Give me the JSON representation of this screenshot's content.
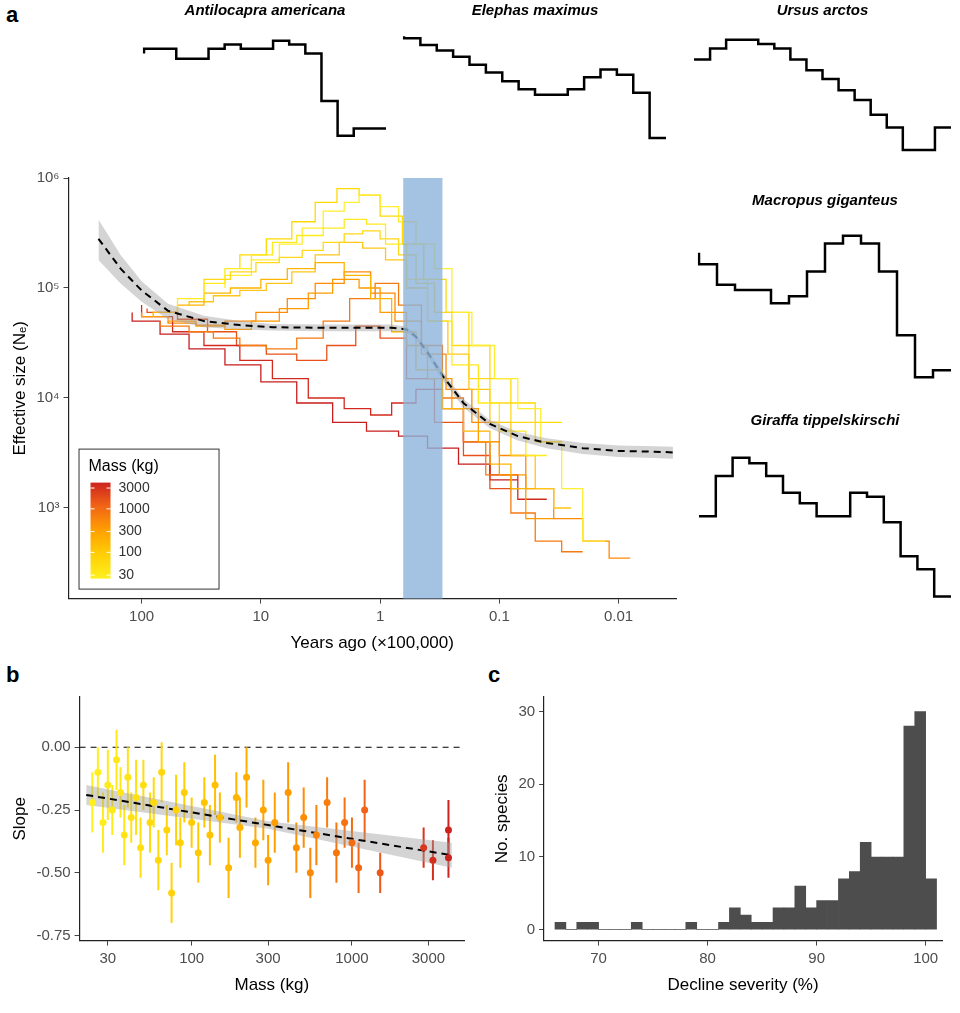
{
  "chart_data": [
    {
      "panel": "a",
      "type": "line",
      "x_label": "Years ago (×100,000)",
      "y_label": "Effective size (Nₑ)",
      "log": true,
      "grid": false,
      "xlim": [
        410,
        0.0033
      ],
      "xticks": [
        100,
        10,
        1,
        0.1,
        0.01
      ],
      "ylim": [
        150,
        1000000
      ],
      "yticks": [
        {
          "value": 1000,
          "label": "10³"
        },
        {
          "value": 10000,
          "label": "10⁴"
        },
        {
          "value": 100000,
          "label": "10⁵"
        },
        {
          "value": 1000000,
          "label": "10⁶"
        }
      ],
      "series": [
        {
          "color": "#FFEA1F",
          "line_style": "steps",
          "x": [
            50,
            30,
            20,
            12,
            8,
            5,
            3,
            2,
            1.3,
            0.9,
            0.6,
            0.4,
            0.25,
            0.15,
            0.1,
            0.06,
            0.04
          ],
          "values": [
            60000,
            80000,
            110000,
            150000,
            200000,
            260000,
            300000,
            350000,
            420000,
            380000,
            250000,
            120000,
            50000,
            20000,
            9000,
            5000,
            3000
          ]
        },
        {
          "color": "#FFD81A",
          "line_style": "steps",
          "x": [
            30,
            18,
            11,
            7,
            4.5,
            3,
            2,
            1.4,
            1,
            0.7,
            0.5,
            0.35,
            0.25,
            0.18,
            0.12,
            0.08,
            0.05,
            0.03
          ],
          "values": [
            90000,
            120000,
            140000,
            170000,
            190000,
            220000,
            260000,
            310000,
            330000,
            280000,
            200000,
            110000,
            60000,
            30000,
            15000,
            9000,
            6000,
            4000
          ]
        },
        {
          "color": "#FFB400",
          "line_style": "steps",
          "x": [
            80,
            50,
            30,
            18,
            10,
            6,
            3.5,
            2,
            1.2,
            0.8,
            0.5,
            0.3,
            0.2,
            0.12,
            0.08,
            0.05
          ],
          "values": [
            55000,
            60000,
            70000,
            90000,
            100000,
            120000,
            150000,
            170000,
            130000,
            80000,
            40000,
            18000,
            8000,
            5000,
            2500,
            1500
          ]
        },
        {
          "color": "#FF9A00",
          "line_style": "steps",
          "x": [
            100,
            60,
            35,
            20,
            12,
            7,
            4,
            2.5,
            1.5,
            1,
            0.6,
            0.4,
            0.25,
            0.15,
            0.1,
            0.06,
            0.035
          ],
          "values": [
            60000,
            55000,
            50000,
            45000,
            42000,
            50000,
            65000,
            90000,
            120000,
            100000,
            60000,
            30000,
            15000,
            8000,
            4000,
            2000,
            800
          ]
        },
        {
          "color": "#F57A10",
          "line_style": "steps",
          "x": [
            70,
            40,
            25,
            15,
            9,
            5,
            3,
            1.8,
            1.1,
            0.7,
            0.45,
            0.3,
            0.2,
            0.13,
            0.08,
            0.05,
            0.03,
            0.02
          ],
          "values": [
            50000,
            45000,
            40000,
            35000,
            30000,
            28000,
            35000,
            50000,
            80000,
            110000,
            70000,
            30000,
            10000,
            4000,
            2000,
            900,
            500,
            400
          ]
        },
        {
          "color": "#D22A1E",
          "line_style": "steps",
          "x": [
            100,
            55,
            30,
            15,
            8,
            4,
            2,
            1.2,
            0.8,
            0.5,
            0.3,
            0.2,
            0.12,
            0.07,
            0.04
          ],
          "values": [
            70000,
            55000,
            40000,
            30000,
            22000,
            15000,
            10000,
            8000,
            7000,
            9000,
            12000,
            8000,
            4000,
            2000,
            1200
          ]
        },
        {
          "color": "#E8521A",
          "line_style": "steps",
          "x": [
            90,
            50,
            28,
            16,
            9,
            5,
            2.8,
            1.6,
            1,
            0.6,
            0.35,
            0.2,
            0.12,
            0.07
          ],
          "values": [
            65000,
            60000,
            52000,
            40000,
            30000,
            25000,
            22000,
            30000,
            45000,
            35000,
            15000,
            6000,
            3000,
            1500
          ]
        },
        {
          "color": "#FFEE33",
          "line_style": "steps",
          "x": [
            20,
            12,
            7,
            4.5,
            3,
            2,
            1.5,
            1,
            0.7,
            0.5,
            0.35,
            0.25,
            0.17,
            0.11,
            0.07,
            0.045,
            0.03,
            0.02,
            0.013
          ],
          "values": [
            100000,
            130000,
            180000,
            250000,
            350000,
            500000,
            600000,
            700000,
            550000,
            400000,
            250000,
            150000,
            60000,
            30000,
            15000,
            8000,
            4000,
            1500,
            500
          ]
        },
        {
          "color": "#FFC61A",
          "line_style": "steps",
          "x": [
            40,
            25,
            15,
            9,
            5.5,
            3.5,
            2.2,
            1.4,
            0.9,
            0.6,
            0.4,
            0.27,
            0.18,
            0.12,
            0.08,
            0.05,
            0.035,
            0.025
          ],
          "values": [
            70000,
            75000,
            85000,
            95000,
            110000,
            140000,
            200000,
            260000,
            230000,
            180000,
            100000,
            50000,
            25000,
            12000,
            6000,
            3000,
            1500,
            1000
          ]
        },
        {
          "color": "#FF8A05",
          "line_style": "steps",
          "x": [
            60,
            35,
            20,
            11,
            6,
            3.5,
            2,
            1.2,
            0.75,
            0.45,
            0.28,
            0.17,
            0.1,
            0.06,
            0.035,
            0.02,
            0.012,
            0.008
          ],
          "values": [
            50000,
            48000,
            46000,
            50000,
            60000,
            80000,
            110000,
            140000,
            90000,
            50000,
            25000,
            12000,
            6000,
            3000,
            1500,
            800,
            500,
            350
          ]
        },
        {
          "color": "#C81E1E",
          "line_style": "steps",
          "x": [
            120,
            70,
            40,
            20,
            10,
            5,
            2.5,
            1.3,
            0.7,
            0.4,
            0.22,
            0.12,
            0.07
          ],
          "values": [
            60000,
            50000,
            38000,
            28000,
            20000,
            14000,
            9000,
            6000,
            5000,
            4500,
            3500,
            2500,
            1800
          ]
        },
        {
          "color": "#FFDA00",
          "line_style": "steps",
          "x": [
            15,
            9,
            5.5,
            3.5,
            2.3,
            1.5,
            1,
            0.65,
            0.43,
            0.28,
            0.18,
            0.12,
            0.08,
            0.05,
            0.03
          ],
          "values": [
            150000,
            200000,
            280000,
            400000,
            600000,
            800000,
            700000,
            450000,
            250000,
            120000,
            60000,
            30000,
            15000,
            9000,
            6000
          ]
        }
      ],
      "fit": {
        "color": "#000000",
        "line_style": "dashed",
        "x": [
          230,
          150,
          100,
          60,
          30,
          15,
          8,
          3,
          1.5,
          0.8,
          0.6,
          0.5,
          0.4,
          0.3,
          0.2,
          0.12,
          0.07,
          0.04,
          0.02,
          0.01,
          0.005,
          0.0035
        ],
        "values": [
          280000,
          150000,
          95000,
          62000,
          50000,
          46000,
          44000,
          43500,
          43500,
          43500,
          42000,
          36000,
          26000,
          16000,
          9000,
          5800,
          4500,
          3900,
          3500,
          3300,
          3250,
          3200
        ],
        "lower": [
          180000,
          110000,
          75000,
          52000,
          44000,
          42000,
          41000,
          40500,
          40500,
          40500,
          39500,
          34000,
          24000,
          14500,
          8200,
          5300,
          4100,
          3500,
          3100,
          2900,
          2850,
          2800
        ],
        "upper": [
          420000,
          200000,
          115000,
          72000,
          56000,
          50000,
          47000,
          46500,
          46500,
          46500,
          44500,
          38000,
          28000,
          17500,
          9800,
          6300,
          4900,
          4300,
          3900,
          3700,
          3650,
          3600
        ]
      },
      "highlight": {
        "x": [
          0.64,
          0.3
        ],
        "color": "#8DB3D9"
      },
      "color_bar": {
        "title": "Mass (kg)",
        "range": [
          25,
          4000
        ],
        "ticks": [
          30,
          100,
          300,
          1000,
          3000
        ]
      }
    },
    {
      "type": "line",
      "title": "Antilocapra americana",
      "log": "y",
      "tick_labels": false,
      "color": "#000000",
      "line_style": "steps",
      "ylim": [
        3000,
        80000
      ],
      "values": [
        40000,
        45000,
        45000,
        35000,
        35000,
        45000,
        50000,
        45000,
        45000,
        55000,
        50000,
        40000,
        12000,
        5000,
        6000,
        6000
      ]
    },
    {
      "type": "line",
      "title": "Elephas maximus",
      "log": "y",
      "tick_labels": false,
      "color": "#000000",
      "line_style": "steps",
      "ylim": [
        3000,
        120000
      ],
      "values": [
        90000,
        85000,
        70000,
        60000,
        50000,
        40000,
        32000,
        25000,
        20000,
        17000,
        17000,
        20000,
        28000,
        35000,
        30000,
        18000,
        5000
      ]
    },
    {
      "type": "line",
      "title": "Ursus arctos",
      "log": "y",
      "tick_labels": false,
      "color": "#000000",
      "line_style": "steps",
      "ylim": [
        5000,
        150000
      ],
      "values": [
        70000,
        70000,
        90000,
        110000,
        110000,
        100000,
        90000,
        70000,
        55000,
        45000,
        35000,
        28000,
        20000,
        15000,
        9000,
        9000,
        15000
      ]
    },
    {
      "type": "line",
      "title": "Macropus giganteus",
      "log": "y",
      "tick_labels": false,
      "color": "#000000",
      "line_style": "steps",
      "ylim": [
        4000,
        200000
      ],
      "values": [
        90000,
        70000,
        45000,
        40000,
        40000,
        30000,
        35000,
        60000,
        110000,
        130000,
        110000,
        60000,
        15000,
        6000,
        7000
      ]
    },
    {
      "type": "line",
      "title": "Giraffa tippelskirschi",
      "log": "y",
      "tick_labels": false,
      "color": "#000000",
      "line_style": "steps",
      "ylim": [
        3000,
        80000
      ],
      "values": [
        20000,
        20000,
        40000,
        55000,
        50000,
        40000,
        30000,
        25000,
        20000,
        20000,
        30000,
        28000,
        18000,
        10000,
        8000,
        5000
      ]
    },
    {
      "panel": "b",
      "type": "scatter",
      "x_label": "Mass (kg)",
      "y_label": "Slope",
      "log": "x",
      "grid": false,
      "xlim": [
        20,
        5000
      ],
      "xticks": [
        30,
        100,
        300,
        1000,
        3000
      ],
      "ylim": [
        -0.77,
        0.2
      ],
      "yticks": [
        -0.75,
        {
          "value": -0.5,
          "label": "-0.50"
        },
        -0.25,
        {
          "value": 0,
          "label": "0.00"
        }
      ],
      "reference_line": 0,
      "x": [
        24,
        26,
        28,
        30,
        32,
        34,
        36,
        38,
        40,
        42,
        45,
        48,
        50,
        55,
        58,
        62,
        65,
        70,
        75,
        80,
        85,
        90,
        100,
        110,
        120,
        130,
        140,
        150,
        170,
        190,
        200,
        220,
        250,
        280,
        300,
        330,
        400,
        450,
        500,
        550,
        600,
        700,
        800,
        900,
        1000,
        1100,
        1200,
        1500,
        2800,
        3200,
        4000,
        4000
      ],
      "values": [
        -0.22,
        -0.1,
        -0.3,
        -0.15,
        -0.25,
        -0.05,
        -0.18,
        -0.35,
        -0.12,
        -0.28,
        -0.2,
        -0.4,
        -0.15,
        -0.3,
        -0.22,
        -0.45,
        -0.1,
        -0.33,
        -0.58,
        -0.25,
        -0.38,
        -0.18,
        -0.3,
        -0.42,
        -0.22,
        -0.35,
        -0.15,
        -0.28,
        -0.48,
        -0.2,
        -0.32,
        -0.12,
        -0.38,
        -0.25,
        -0.45,
        -0.3,
        -0.18,
        -0.4,
        -0.28,
        -0.5,
        -0.35,
        -0.22,
        -0.42,
        -0.3,
        -0.38,
        -0.48,
        -0.25,
        -0.5,
        -0.4,
        -0.45,
        -0.33,
        -0.44
      ],
      "errors": [
        0.12,
        0.1,
        0.12,
        0.14,
        0.1,
        0.12,
        0.1,
        0.12,
        0.12,
        0.1,
        0.15,
        0.12,
        0.1,
        0.12,
        0.1,
        0.12,
        0.12,
        0.1,
        0.12,
        0.14,
        0.1,
        0.12,
        0.1,
        0.12,
        0.1,
        0.12,
        0.12,
        0.1,
        0.12,
        0.1,
        0.12,
        0.12,
        0.1,
        0.12,
        0.1,
        0.12,
        0.12,
        0.1,
        0.12,
        0.1,
        0.12,
        0.1,
        0.12,
        0.1,
        0.1,
        0.1,
        0.12,
        0.08,
        0.08,
        0.08,
        0.12,
        0.08
      ],
      "fit": {
        "color": "#000000",
        "line_style": "dashed",
        "x": [
          22,
          300,
          4200
        ],
        "values": [
          -0.19,
          -0.31,
          -0.43
        ],
        "lower": [
          -0.23,
          -0.325,
          -0.48
        ],
        "upper": [
          -0.15,
          -0.295,
          -0.38
        ]
      }
    },
    {
      "panel": "c",
      "type": "histogram",
      "x_label": "Decline severity (%)",
      "y_label": "No. species",
      "grid": false,
      "color": "#4D4D4D",
      "xlim": [
        65,
        101.5
      ],
      "xticks": [
        70,
        80,
        90,
        100
      ],
      "ylim": [
        -1.5,
        32
      ],
      "yticks": [
        0,
        10,
        20,
        30
      ],
      "bins": [
        66,
        67,
        68,
        69,
        70,
        71,
        72,
        73,
        74,
        75,
        76,
        77,
        78,
        79,
        80,
        81,
        82,
        83,
        84,
        85,
        86,
        87,
        88,
        89,
        90,
        91,
        92,
        93,
        94,
        95,
        96,
        97,
        98,
        99,
        100,
        101
      ],
      "values": [
        1,
        0,
        1,
        1,
        0,
        0,
        0,
        1,
        0,
        0,
        0,
        0,
        1,
        0,
        0,
        1,
        3,
        2,
        1,
        1,
        3,
        3,
        6,
        3,
        4,
        4,
        7,
        8,
        12,
        10,
        10,
        10,
        28,
        30,
        7
      ]
    }
  ]
}
